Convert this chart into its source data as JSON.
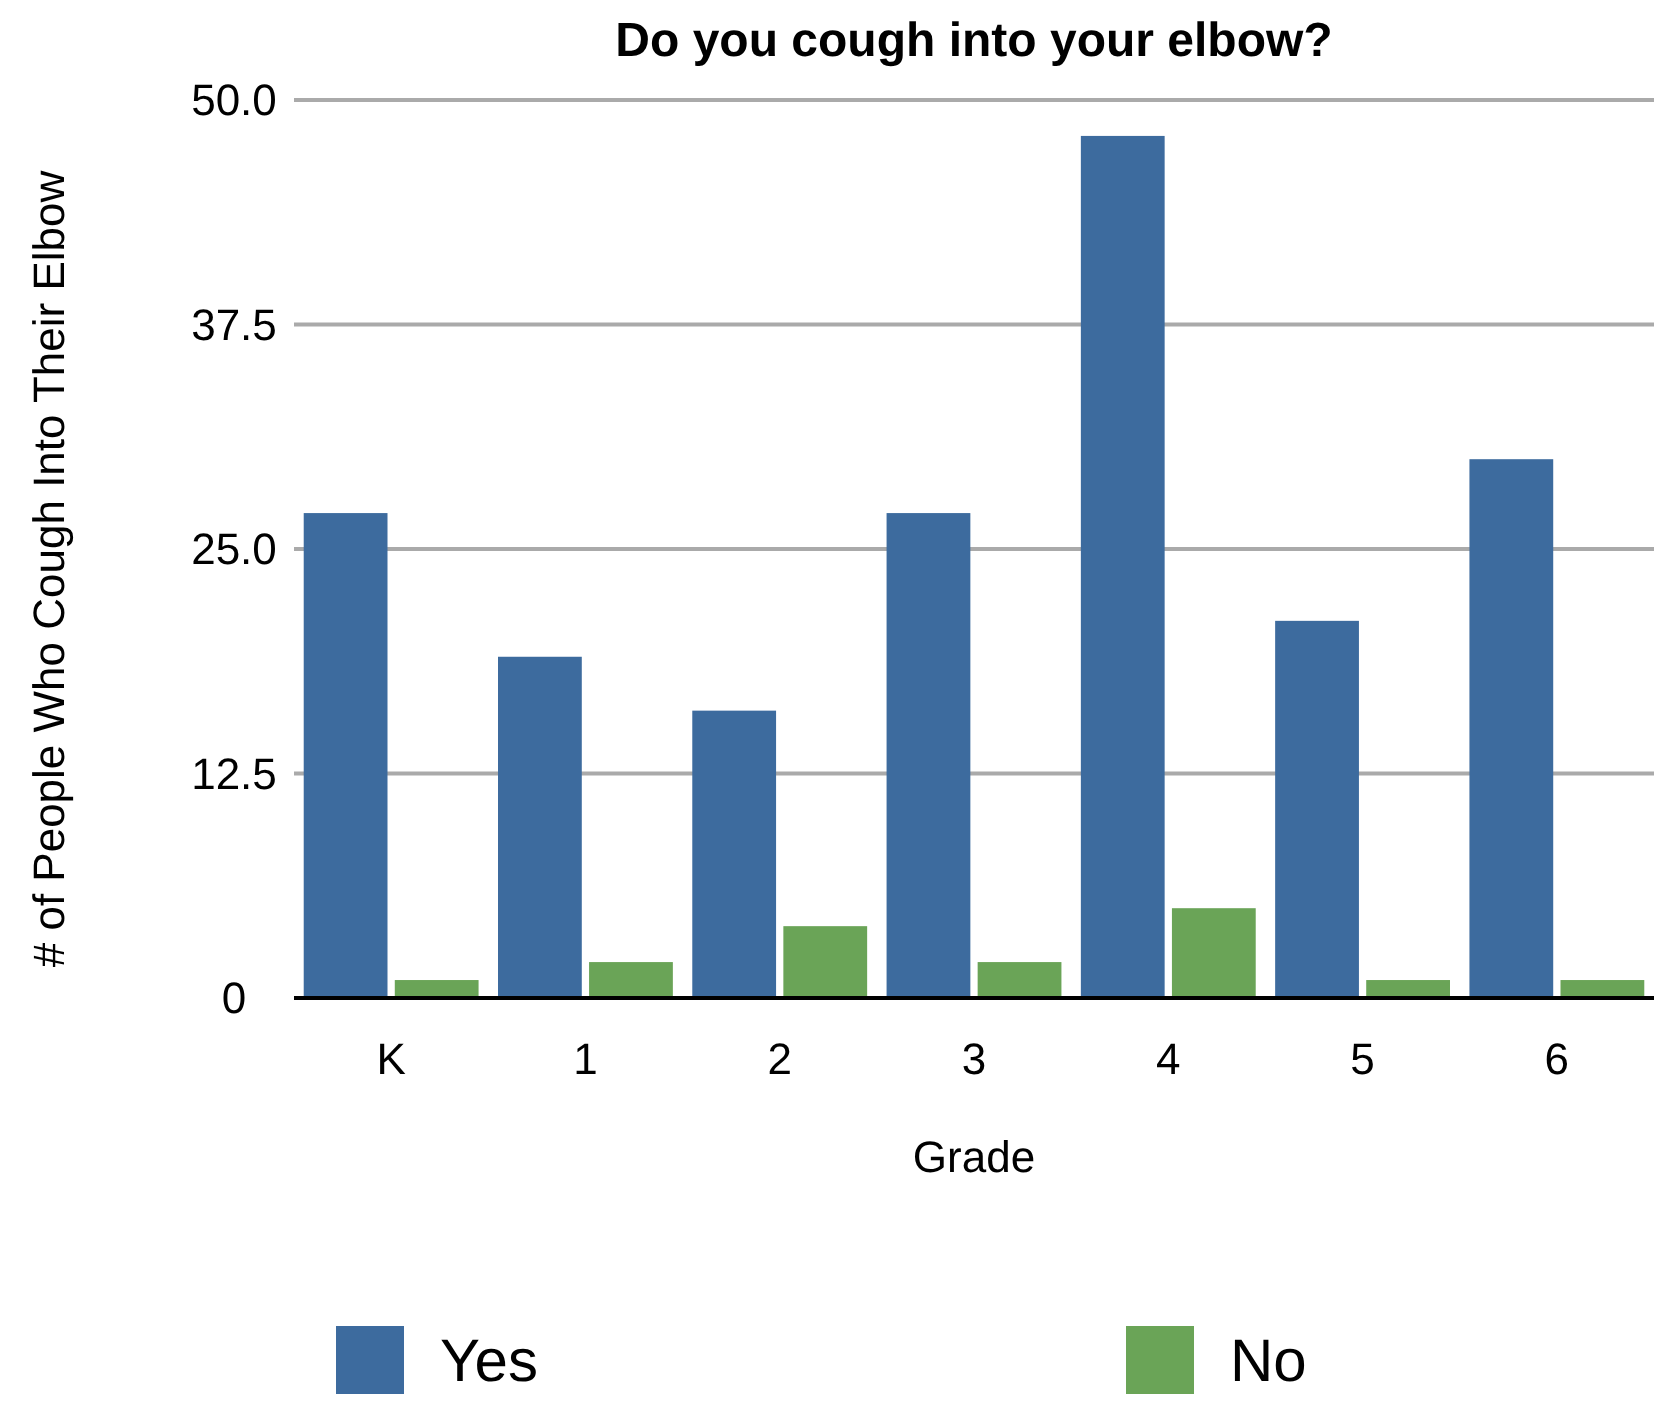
{
  "chart_data": {
    "type": "bar",
    "title": "Do you cough into your elbow?",
    "xlabel": "Grade",
    "ylabel": "# of People Who Cough Into Their Elbow",
    "categories": [
      "K",
      "1",
      "2",
      "3",
      "4",
      "5",
      "6"
    ],
    "series": [
      {
        "name": "Yes",
        "color": "#3d6b9e",
        "values": [
          27,
          19,
          16,
          27,
          48,
          21,
          30
        ]
      },
      {
        "name": "No",
        "color": "#6aa457",
        "values": [
          1,
          2,
          4,
          2,
          5,
          1,
          1
        ]
      }
    ],
    "ylim": [
      0,
      50
    ],
    "yticks": [
      0,
      12.5,
      {
        "value": 25,
        "label": "25.0"
      },
      37.5,
      {
        "value": 50,
        "label": "50.0"
      }
    ],
    "grid": "y",
    "legend": "bottom"
  }
}
